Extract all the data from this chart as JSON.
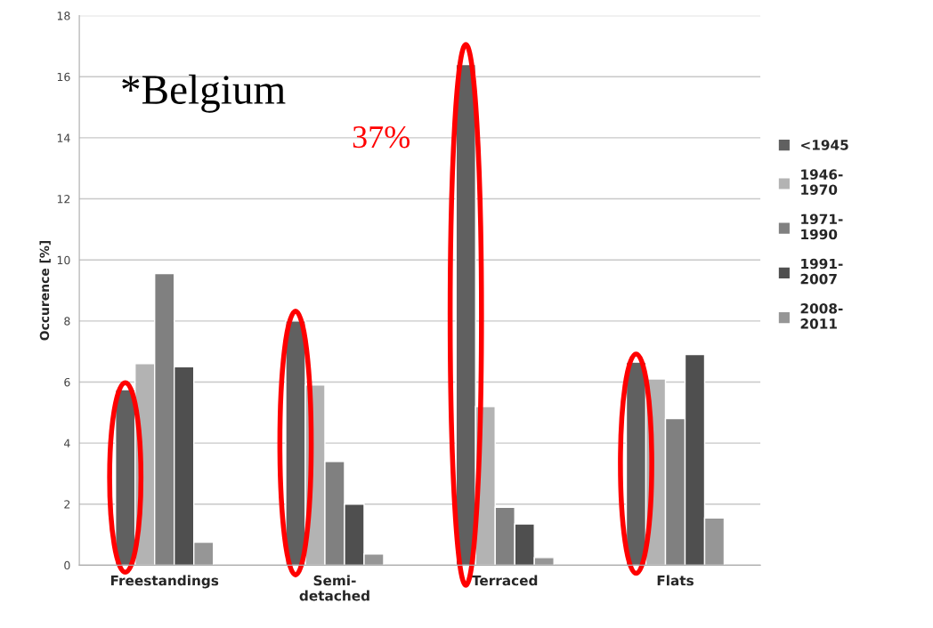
{
  "chart_data": {
    "type": "bar",
    "categories": [
      "Freestandings",
      "Semi-detached",
      "Terraced",
      "Flats"
    ],
    "ylabel": "Occurence [%]",
    "series": [
      {
        "name": "<1945",
        "color": "#606060",
        "values": [
          5.75,
          8.0,
          16.4,
          6.65
        ]
      },
      {
        "name": "1946-1970",
        "color": "#b3b3b3",
        "values": [
          6.6,
          5.9,
          5.2,
          6.1
        ]
      },
      {
        "name": "1971-1990",
        "color": "#808080",
        "values": [
          9.55,
          3.4,
          1.9,
          4.8
        ]
      },
      {
        "name": "1991-2007",
        "color": "#4f4f4f",
        "values": [
          6.5,
          2.0,
          1.35,
          6.9
        ]
      },
      {
        "name": "2008-2011",
        "color": "#969696",
        "values": [
          0.75,
          0.37,
          0.25,
          1.55
        ]
      }
    ],
    "ylim": [
      0,
      18
    ],
    "yticks": [
      0,
      2,
      4,
      6,
      8,
      10,
      12,
      14,
      16,
      18
    ],
    "grid": "y",
    "legend": "right",
    "annotations": [
      "*Belgium",
      "37%"
    ]
  }
}
